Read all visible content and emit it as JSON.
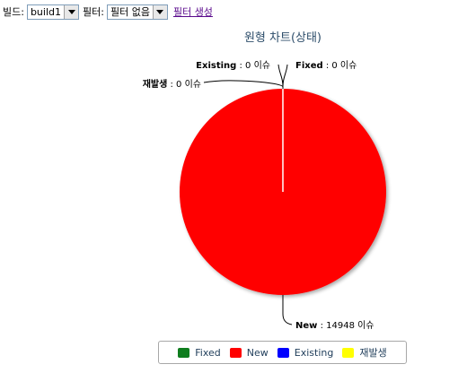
{
  "toolbar": {
    "build_label": "빌드:",
    "build_value": "build1",
    "filter_label": "필터:",
    "filter_value": "필터 없음",
    "create_filter_link": "필터 생성"
  },
  "chart_data": {
    "type": "pie",
    "title": "원형 차트(상태)",
    "unit": "이슈",
    "categories": [
      "Fixed",
      "New",
      "Existing",
      "재발생"
    ],
    "values": [
      0,
      14948,
      0,
      0
    ],
    "colors": [
      "#0f7d1e",
      "#ff0000",
      "#0000ff",
      "#ffff00"
    ],
    "slice_labels": [
      {
        "name": "Fixed",
        "value": "0",
        "unit": "이슈"
      },
      {
        "name": "New",
        "value": "14948",
        "unit": "이슈"
      },
      {
        "name": "Existing",
        "value": "0",
        "unit": "이슈"
      },
      {
        "name": "재발생",
        "value": "0",
        "unit": "이슈"
      }
    ],
    "legend_position": "bottom"
  }
}
